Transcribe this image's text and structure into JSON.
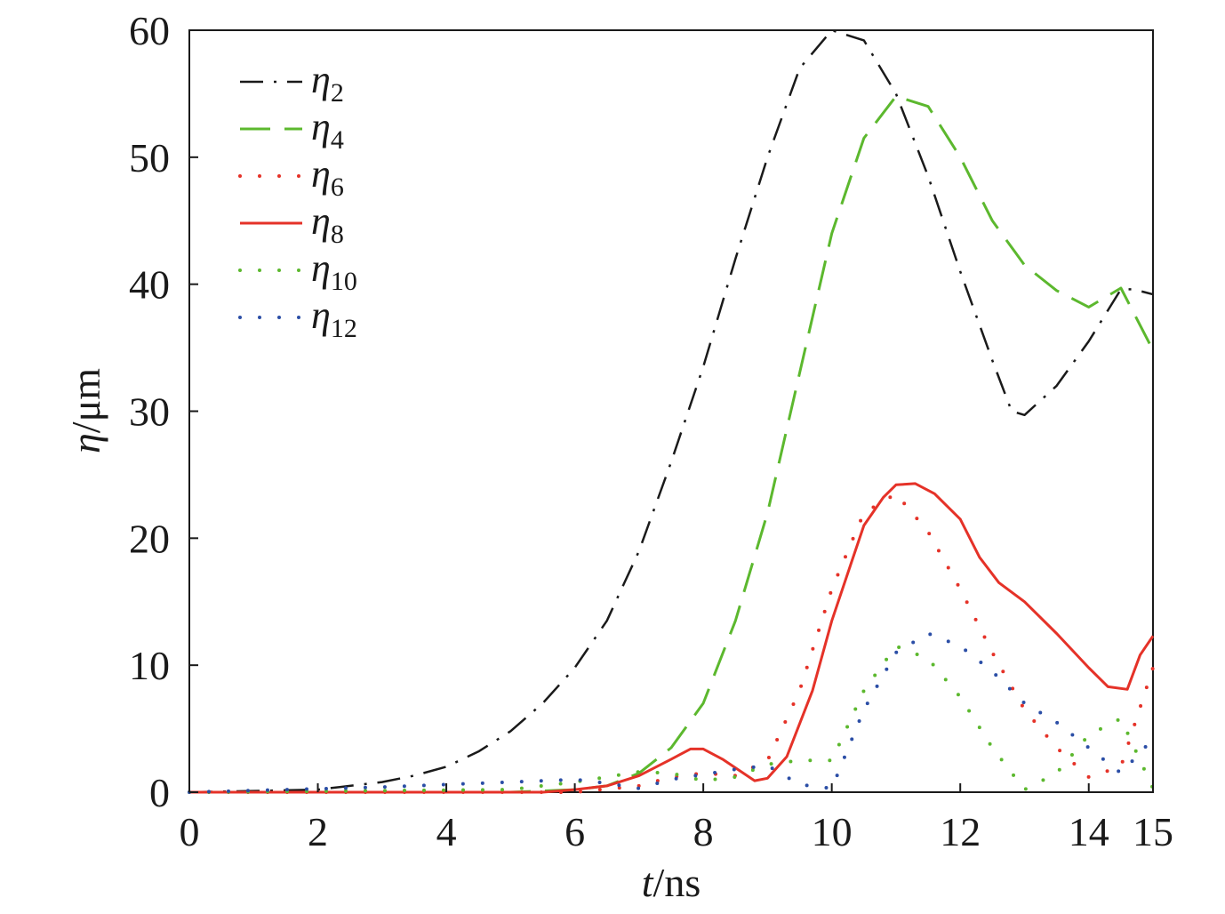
{
  "chart_data": {
    "type": "line",
    "xlabel": {
      "var": "t",
      "unit": "/ns"
    },
    "ylabel": {
      "var": "η",
      "unit": "/μm"
    },
    "xlim": [
      0,
      15
    ],
    "ylim": [
      0,
      60
    ],
    "xticks": [
      0,
      2,
      4,
      6,
      8,
      10,
      12,
      14,
      15
    ],
    "yticks": [
      0,
      10,
      20,
      30,
      40,
      50,
      60
    ],
    "grid": false,
    "legend_position": "top-left",
    "series": [
      {
        "name": "η2",
        "base": "η",
        "sub": "2",
        "color": "#1a1a1a",
        "style": "dashdot",
        "x": [
          0,
          1,
          2,
          3,
          3.5,
          4,
          4.5,
          5,
          5.5,
          6,
          6.5,
          7,
          7.5,
          8,
          8.5,
          9,
          9.5,
          10,
          10.5,
          11,
          11.5,
          12,
          12.5,
          12.8,
          13,
          13.5,
          14,
          14.5,
          14.7,
          15
        ],
        "values": [
          0,
          0.1,
          0.2,
          0.8,
          1.3,
          2,
          3.2,
          4.8,
          7,
          9.8,
          13.5,
          19,
          26,
          33.5,
          42,
          50,
          57,
          60,
          59.2,
          55,
          48.5,
          41,
          34,
          30,
          29.7,
          32,
          35.5,
          39.6,
          39.6,
          39.2
        ]
      },
      {
        "name": "η4",
        "base": "η",
        "sub": "4",
        "color": "#5cb82e",
        "style": "dashed",
        "x": [
          0,
          5,
          6,
          6.5,
          7,
          7.5,
          8,
          8.5,
          9,
          9.5,
          10,
          10.5,
          11,
          11.5,
          12,
          12.5,
          13,
          13.5,
          14,
          14.5,
          15
        ],
        "values": [
          0,
          0,
          0.2,
          0.5,
          1.5,
          3.5,
          7,
          13.5,
          22,
          33,
          44,
          51.5,
          54.8,
          54,
          50,
          45,
          41.5,
          39.5,
          38.2,
          39.7,
          34.8
        ]
      },
      {
        "name": "η6",
        "base": "η",
        "sub": "6",
        "color": "#e53228",
        "style": "dotted",
        "x": [
          0,
          6,
          7,
          7.5,
          8,
          8.5,
          9,
          9.5,
          10,
          10.5,
          11,
          11.5,
          12,
          12.5,
          13,
          13.5,
          14,
          14.5,
          15
        ],
        "values": [
          0,
          0,
          0.5,
          1.2,
          1.5,
          1.3,
          2.5,
          8,
          16,
          22,
          23.5,
          20.5,
          16,
          11,
          6.5,
          3.5,
          1.2,
          2,
          9.8
        ]
      },
      {
        "name": "η8",
        "base": "η",
        "sub": "8",
        "color": "#e53228",
        "style": "solid",
        "x": [
          0,
          5.5,
          6,
          6.5,
          7,
          7.5,
          7.8,
          8,
          8.3,
          8.8,
          9,
          9.3,
          9.7,
          10,
          10.3,
          10.5,
          10.8,
          11,
          11.3,
          11.6,
          12,
          12.3,
          12.6,
          13,
          13.5,
          14,
          14.3,
          14.6,
          14.8,
          15
        ],
        "values": [
          0,
          0,
          0.2,
          0.5,
          1.3,
          2.6,
          3.4,
          3.4,
          2.6,
          0.9,
          1.1,
          2.8,
          8,
          13.5,
          18,
          21,
          23.2,
          24.2,
          24.3,
          23.5,
          21.5,
          18.5,
          16.5,
          15,
          12.5,
          9.8,
          8.3,
          8.1,
          10.8,
          12.3
        ]
      },
      {
        "name": "η10",
        "base": "η",
        "sub": "10",
        "color": "#5cb82e",
        "style": "dotted",
        "x": [
          0,
          5,
          6,
          6.5,
          7,
          7.5,
          8,
          8.5,
          9,
          9.5,
          10,
          10.5,
          11,
          11.5,
          12,
          12.5,
          13,
          13.5,
          14,
          14.5,
          15
        ],
        "values": [
          0,
          0.2,
          0.8,
          1.2,
          1.6,
          1.5,
          0.9,
          1.2,
          2.2,
          2.5,
          2.5,
          8,
          11.5,
          10.5,
          7.5,
          3.5,
          0.2,
          1.5,
          4.5,
          5.8,
          0.3
        ]
      },
      {
        "name": "η12",
        "base": "η",
        "sub": "12",
        "color": "#2b4ea6",
        "style": "dotted",
        "x": [
          0,
          3,
          4,
          5,
          6,
          6.5,
          7,
          7.5,
          8,
          8.5,
          9,
          9.5,
          10,
          10.5,
          11,
          11.5,
          12,
          12.5,
          13,
          13.5,
          14,
          14.5,
          15
        ],
        "values": [
          0,
          0.4,
          0.6,
          0.8,
          1,
          0.7,
          0.3,
          1,
          1.4,
          1.8,
          2.1,
          0.6,
          0.3,
          6.5,
          11,
          12.5,
          11.5,
          9.5,
          7,
          5.5,
          3.5,
          1.5,
          4.2
        ]
      }
    ]
  }
}
